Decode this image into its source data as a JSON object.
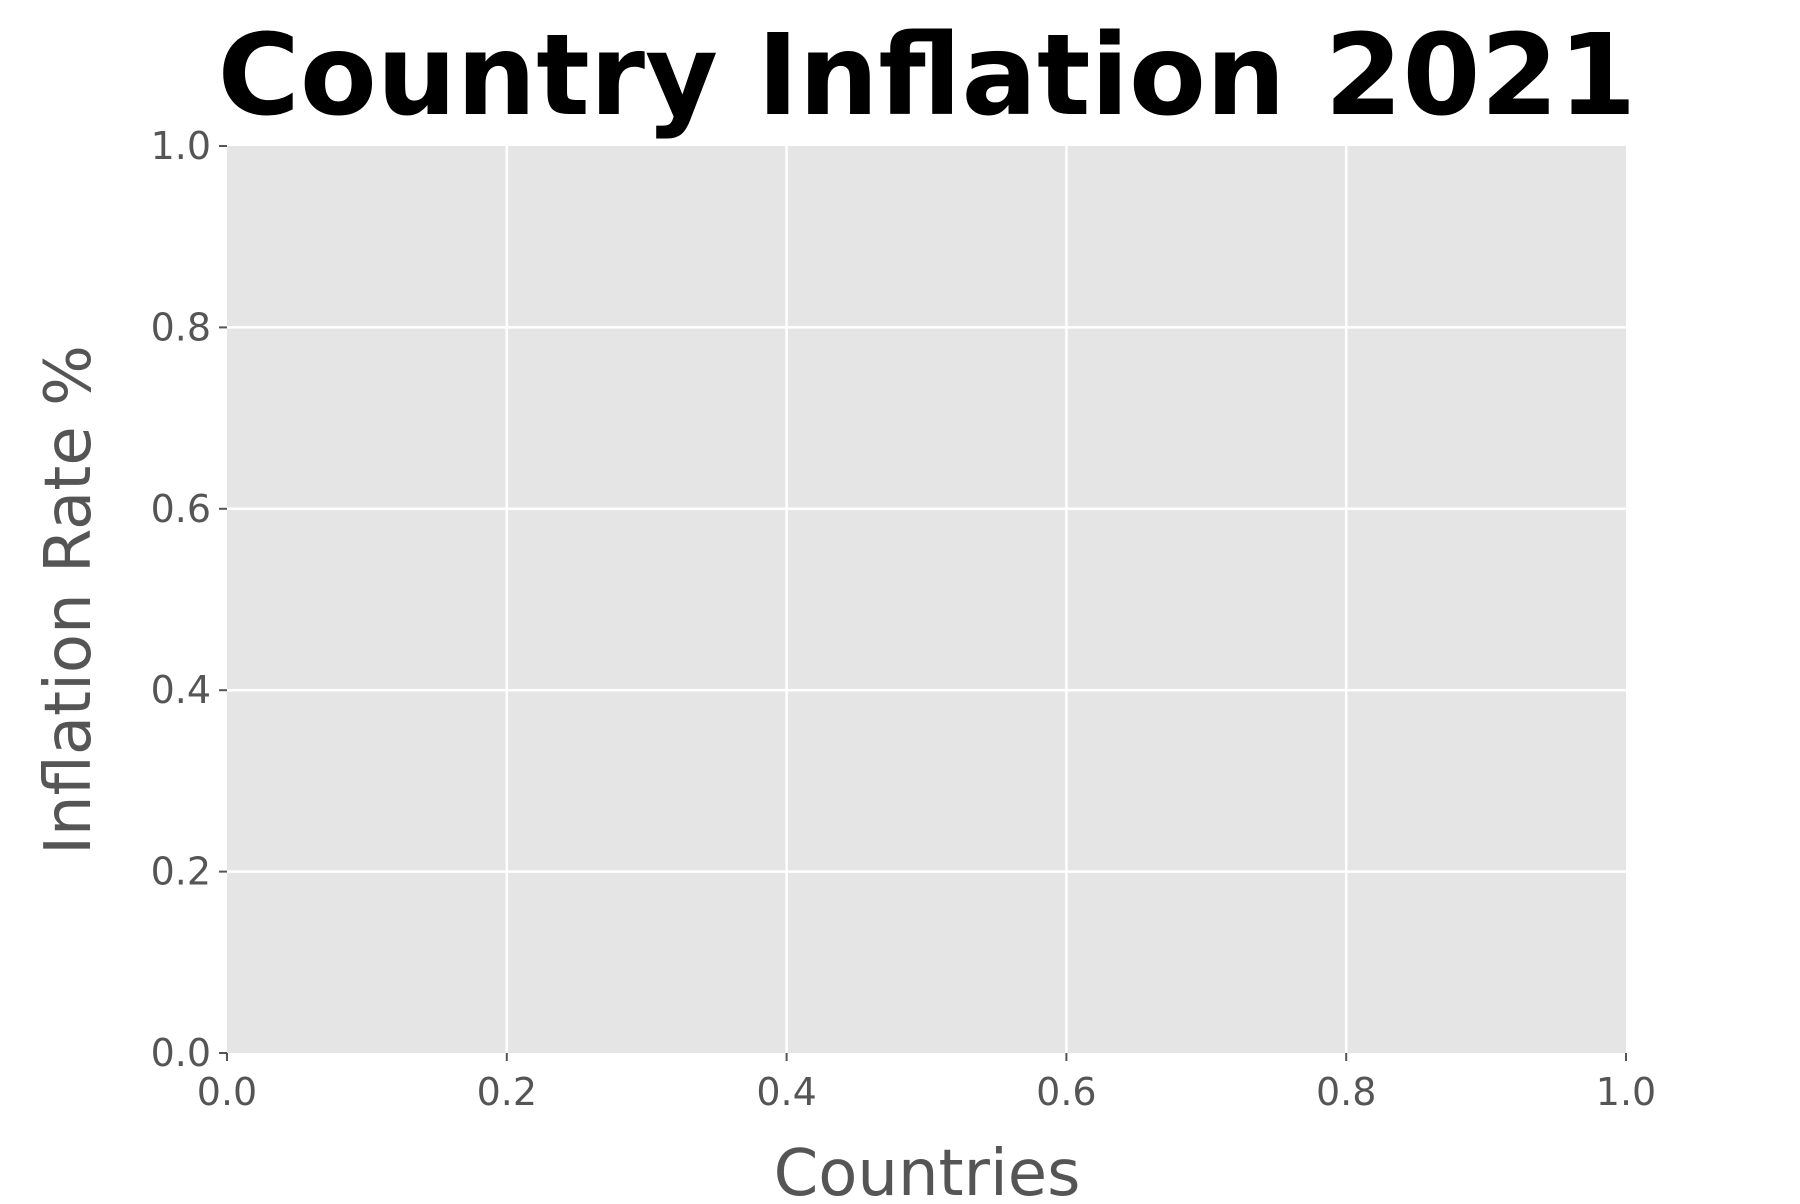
{
  "chart_data": {
    "type": "bar",
    "title": "Country Inflation 2021",
    "xlabel": "Countries",
    "ylabel": "Inflation Rate %",
    "categories": [],
    "series": [],
    "xlim": [
      0.0,
      1.0
    ],
    "ylim": [
      0.0,
      1.0
    ],
    "x_ticks": [
      "0.0",
      "0.2",
      "0.4",
      "0.6",
      "0.8",
      "1.0"
    ],
    "y_ticks": [
      "0.0",
      "0.2",
      "0.4",
      "0.6",
      "0.8",
      "1.0"
    ],
    "grid": true,
    "legend": "none",
    "colors": {
      "plot_background": "#e5e5e5",
      "grid": "#ffffff",
      "tick_text": "#555555",
      "axis_title": "#555555",
      "title": "#000000"
    }
  }
}
